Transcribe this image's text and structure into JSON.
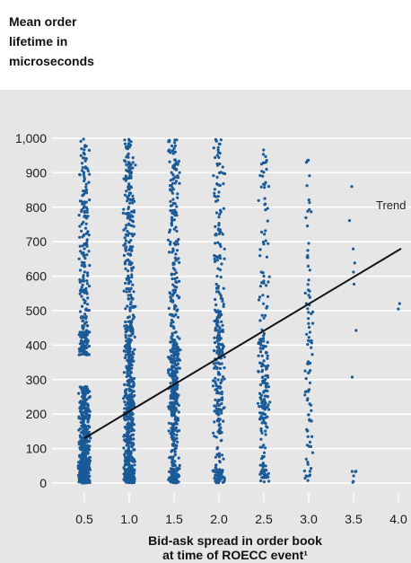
{
  "chart_data": {
    "type": "scatter",
    "title": "",
    "ylabel_lines": [
      "Mean order",
      "lifetime in",
      "microseconds"
    ],
    "xlabel_lines": [
      "Bid-ask spread in order book",
      "at time of ROECC event¹"
    ],
    "x_ticks": [
      "0.5",
      "1.0",
      "1.5",
      "2.0",
      "2.5",
      "3.0",
      "3.5",
      "4.0"
    ],
    "y_ticks": [
      "0",
      "100",
      "200",
      "300",
      "400",
      "500",
      "600",
      "700",
      "800",
      "900",
      "1,000"
    ],
    "xlim": [
      0.5,
      4.0
    ],
    "ylim": [
      0,
      1000
    ],
    "grid": true,
    "point_color": "#1a5a96",
    "background_color": "#e6e6e6",
    "trend": {
      "label": "Trend",
      "x": [
        0.5,
        4.0
      ],
      "y": [
        130,
        680
      ]
    },
    "columns": [
      {
        "x": 0.5,
        "count": 950,
        "max": 1000,
        "dense": [
          [
            0,
            70,
            0.38
          ],
          [
            70,
            280,
            0.32
          ],
          [
            370,
            440,
            0.12
          ],
          [
            440,
            1000,
            0.18
          ]
        ]
      },
      {
        "x": 1.0,
        "count": 720,
        "max": 1000,
        "dense": [
          [
            0,
            40,
            0.18
          ],
          [
            40,
            300,
            0.34
          ],
          [
            300,
            480,
            0.2
          ],
          [
            480,
            1000,
            0.28
          ]
        ]
      },
      {
        "x": 1.5,
        "count": 560,
        "max": 1000,
        "dense": [
          [
            0,
            40,
            0.12
          ],
          [
            40,
            220,
            0.22
          ],
          [
            220,
            420,
            0.36
          ],
          [
            420,
            1000,
            0.3
          ]
        ]
      },
      {
        "x": 2.0,
        "count": 340,
        "max": 1000,
        "dense": [
          [
            0,
            40,
            0.14
          ],
          [
            40,
            200,
            0.16
          ],
          [
            200,
            500,
            0.44
          ],
          [
            500,
            1000,
            0.26
          ]
        ]
      },
      {
        "x": 2.5,
        "count": 220,
        "max": 970,
        "dense": [
          [
            0,
            40,
            0.12
          ],
          [
            40,
            180,
            0.1
          ],
          [
            180,
            420,
            0.46
          ],
          [
            420,
            970,
            0.32
          ]
        ]
      },
      {
        "x": 3.0,
        "count": 95,
        "max": 960,
        "dense": [
          [
            0,
            40,
            0.12
          ],
          [
            40,
            200,
            0.18
          ],
          [
            200,
            560,
            0.5
          ],
          [
            560,
            960,
            0.2
          ]
        ]
      },
      {
        "x": 3.5,
        "count": 14,
        "max": 900,
        "dense": [
          [
            0,
            40,
            0.25
          ],
          [
            180,
            440,
            0.45
          ],
          [
            440,
            900,
            0.3
          ]
        ]
      },
      {
        "x": 4.0,
        "count": 2,
        "max": 570,
        "dense": [
          [
            500,
            570,
            1.0
          ]
        ]
      }
    ]
  }
}
